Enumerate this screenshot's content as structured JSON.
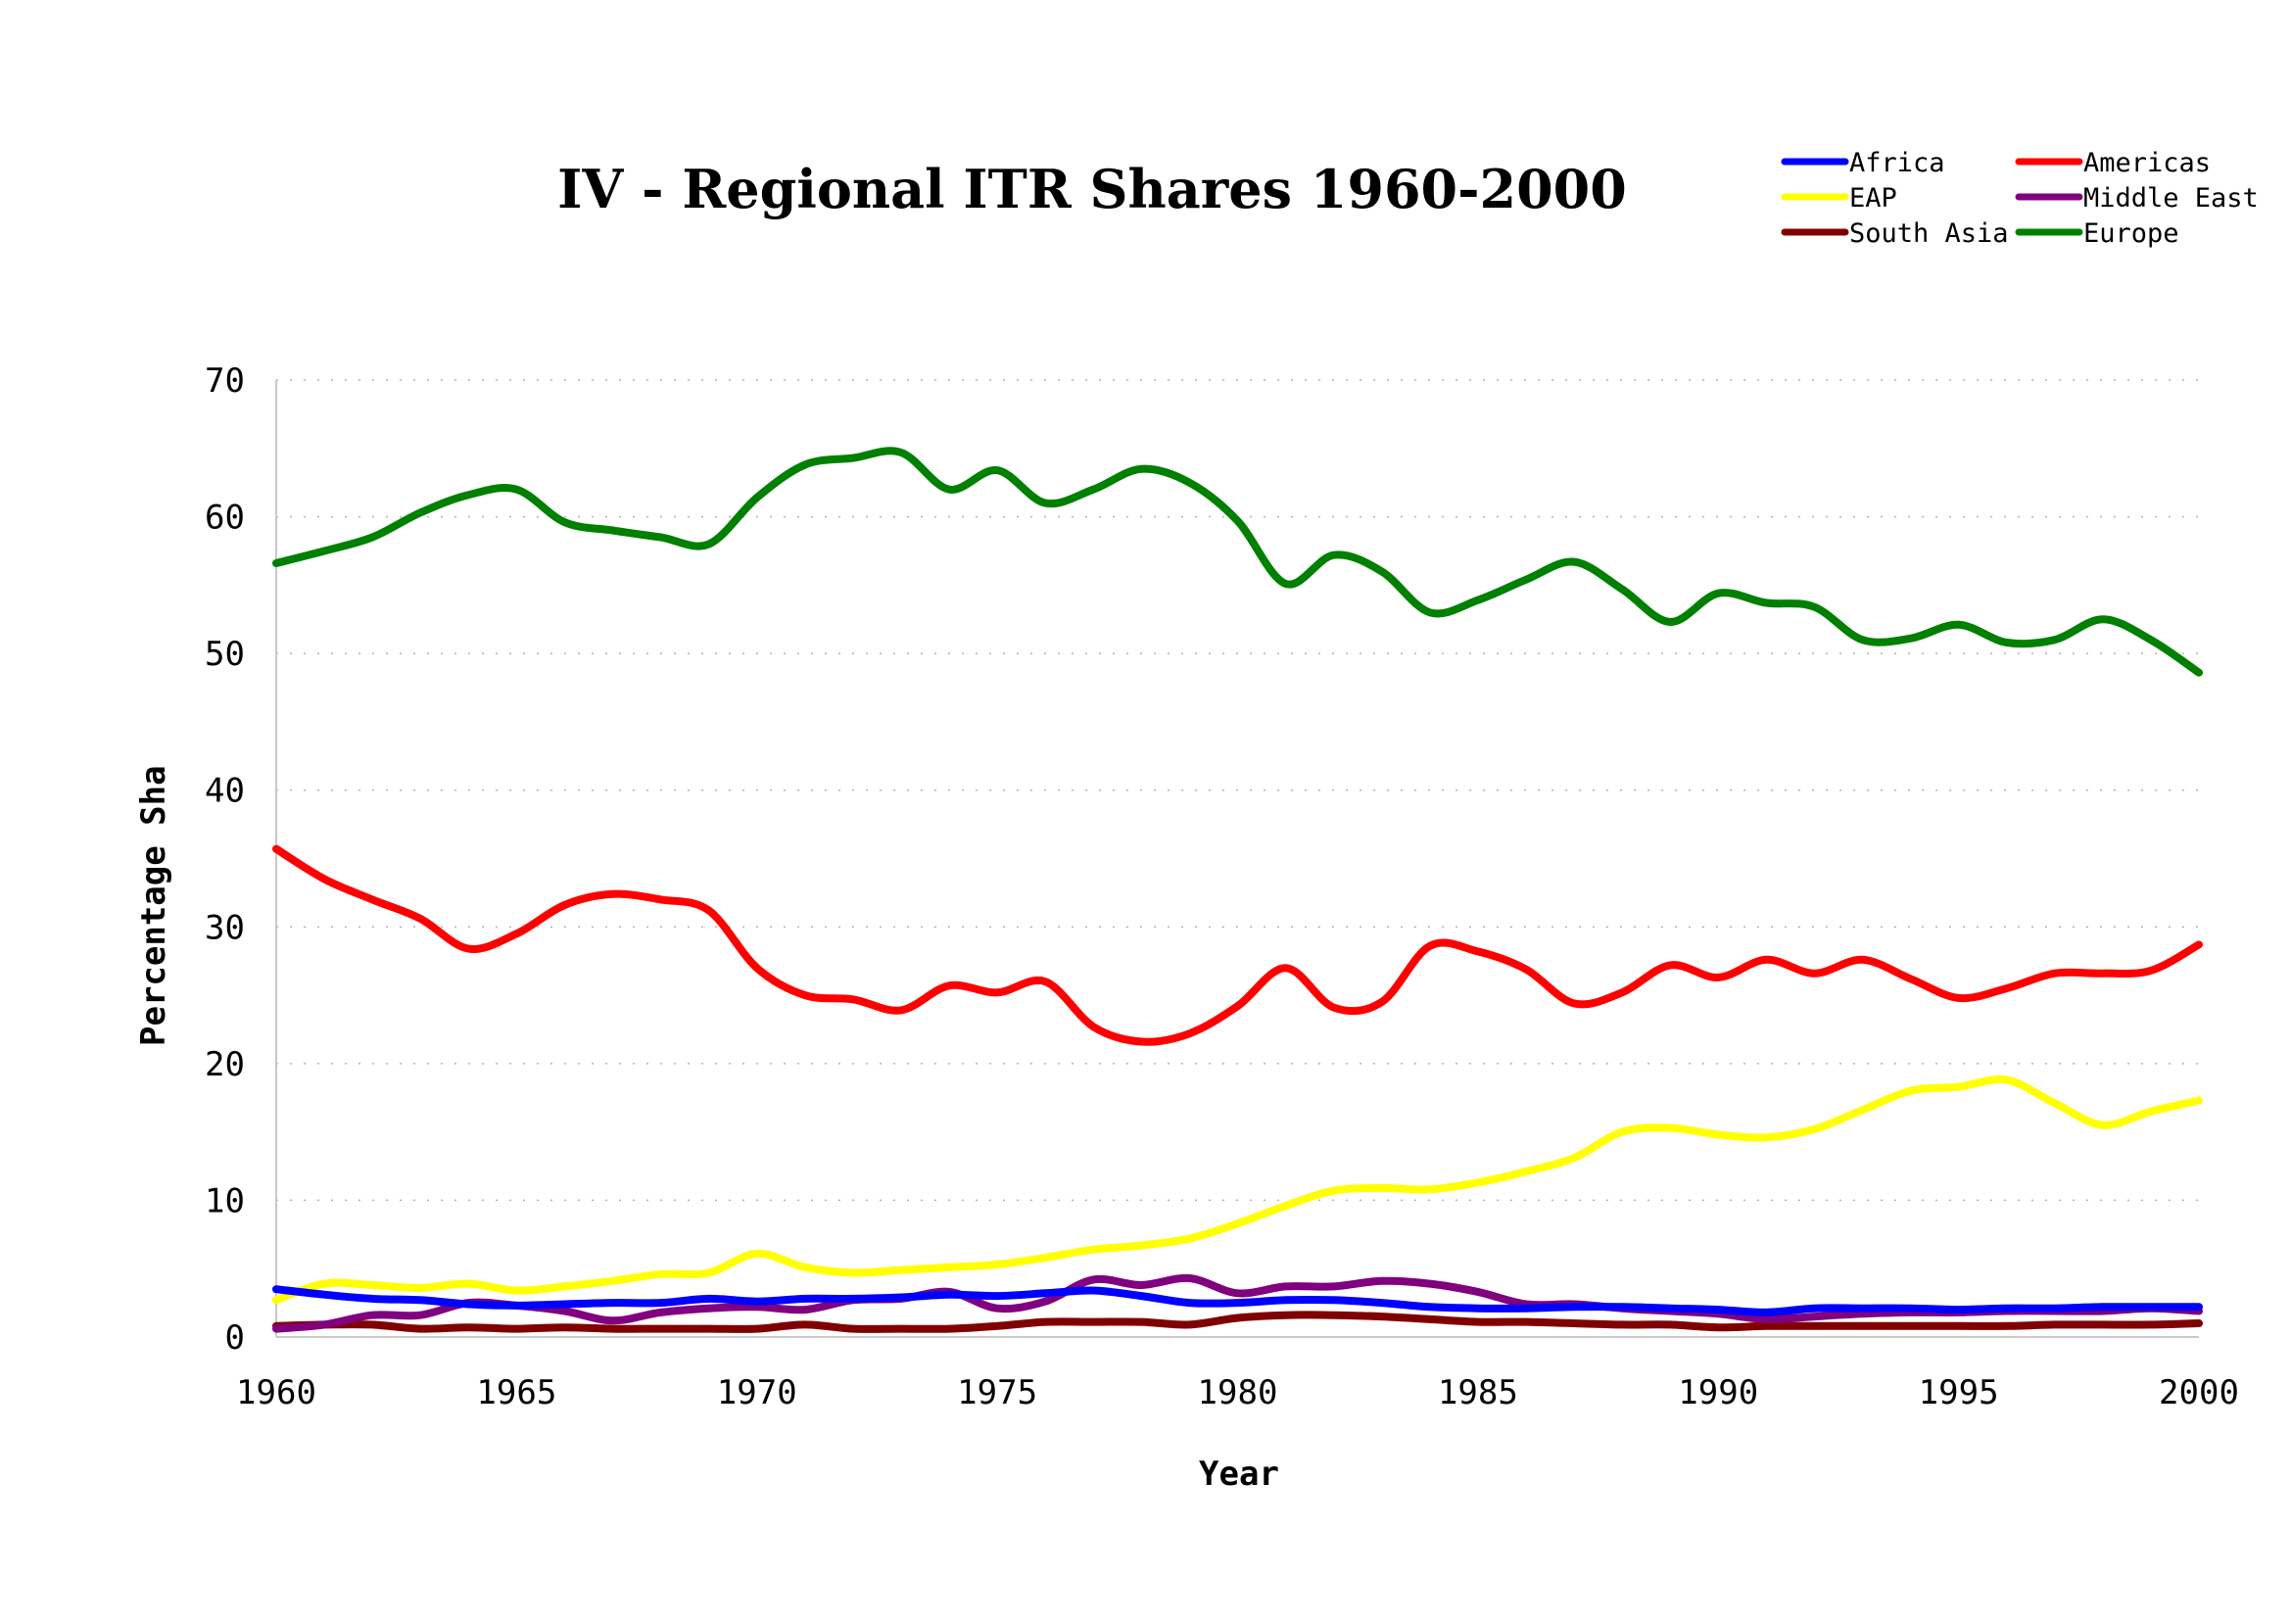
{
  "chart_data": {
    "type": "line",
    "title": "IV - Regional ITR Shares 1960-2000",
    "xlabel": "Year",
    "ylabel": "Percentage Sha",
    "xlim": [
      1960,
      2000
    ],
    "ylim": [
      0,
      70
    ],
    "xticks": [
      1960,
      1965,
      1970,
      1975,
      1980,
      1985,
      1990,
      1995,
      2000
    ],
    "yticks": [
      0,
      10,
      20,
      30,
      40,
      50,
      60,
      70
    ],
    "grid": "horizontal-dotted",
    "legend_position": "top-right",
    "x": [
      1960,
      1961,
      1962,
      1963,
      1964,
      1965,
      1966,
      1967,
      1968,
      1969,
      1970,
      1971,
      1972,
      1973,
      1974,
      1975,
      1976,
      1977,
      1978,
      1979,
      1980,
      1981,
      1982,
      1983,
      1984,
      1985,
      1986,
      1987,
      1988,
      1989,
      1990,
      1991,
      1992,
      1993,
      1994,
      1995,
      1996,
      1997,
      1998,
      1999,
      2000
    ],
    "series": [
      {
        "name": "Africa",
        "color": "#0000ff",
        "values": [
          3.5,
          3.1,
          2.8,
          2.7,
          2.4,
          2.3,
          2.4,
          2.5,
          2.5,
          2.8,
          2.6,
          2.8,
          2.8,
          2.9,
          3.1,
          3.0,
          3.2,
          3.4,
          3.0,
          2.5,
          2.5,
          2.7,
          2.7,
          2.5,
          2.2,
          2.1,
          2.1,
          2.2,
          2.2,
          2.1,
          2.0,
          1.8,
          2.1,
          2.1,
          2.1,
          2.0,
          2.1,
          2.1,
          2.2,
          2.2,
          2.2
        ]
      },
      {
        "name": "Americas",
        "color": "#ff0000",
        "values": [
          35.7,
          33.5,
          32.0,
          30.6,
          28.4,
          29.5,
          31.6,
          32.4,
          32.0,
          31.2,
          27.0,
          25.0,
          24.7,
          23.9,
          25.7,
          25.2,
          26.0,
          22.7,
          21.6,
          22.2,
          24.2,
          27.0,
          24.1,
          24.5,
          28.6,
          28.2,
          26.9,
          24.4,
          25.2,
          27.2,
          26.3,
          27.6,
          26.6,
          27.6,
          26.2,
          24.8,
          25.5,
          26.6,
          26.6,
          26.8,
          28.7
        ]
      },
      {
        "name": "EAP",
        "color": "#ffff00",
        "values": [
          2.7,
          3.9,
          3.8,
          3.6,
          3.9,
          3.4,
          3.7,
          4.1,
          4.6,
          4.7,
          6.1,
          5.1,
          4.7,
          4.9,
          5.1,
          5.3,
          5.8,
          6.4,
          6.7,
          7.2,
          8.3,
          9.6,
          10.7,
          10.9,
          10.8,
          11.3,
          12.1,
          13.1,
          15.0,
          15.3,
          14.8,
          14.6,
          15.2,
          16.6,
          18.0,
          18.3,
          18.8,
          17.1,
          15.5,
          16.5,
          17.3
        ]
      },
      {
        "name": "Middle East",
        "color": "#800080",
        "values": [
          0.6,
          0.9,
          1.6,
          1.6,
          2.5,
          2.3,
          1.9,
          1.2,
          1.8,
          2.1,
          2.2,
          2.0,
          2.7,
          2.8,
          3.3,
          2.1,
          2.6,
          4.2,
          3.8,
          4.3,
          3.2,
          3.7,
          3.7,
          4.1,
          3.9,
          3.3,
          2.4,
          2.4,
          2.1,
          1.9,
          1.7,
          1.3,
          1.5,
          1.7,
          1.8,
          1.8,
          1.9,
          1.9,
          1.9,
          2.1,
          1.9
        ]
      },
      {
        "name": "South Asia",
        "color": "#800000",
        "values": [
          0.8,
          0.9,
          0.9,
          0.6,
          0.7,
          0.6,
          0.7,
          0.6,
          0.6,
          0.6,
          0.6,
          0.9,
          0.6,
          0.6,
          0.6,
          0.8,
          1.1,
          1.1,
          1.1,
          0.9,
          1.4,
          1.6,
          1.6,
          1.5,
          1.3,
          1.1,
          1.1,
          1.0,
          0.9,
          0.9,
          0.7,
          0.8,
          0.8,
          0.8,
          0.8,
          0.8,
          0.8,
          0.9,
          0.9,
          0.9,
          1.0
        ]
      },
      {
        "name": "Europe",
        "color": "#008000",
        "values": [
          56.6,
          57.5,
          58.5,
          60.3,
          61.6,
          62.0,
          59.6,
          59.0,
          58.5,
          58.0,
          61.4,
          63.8,
          64.3,
          64.7,
          62.0,
          63.4,
          61.0,
          62.0,
          63.5,
          62.5,
          59.7,
          55.1,
          57.2,
          56.0,
          53.0,
          53.9,
          55.4,
          56.7,
          54.7,
          52.3,
          54.4,
          53.7,
          53.4,
          51.0,
          51.1,
          52.1,
          50.8,
          51.0,
          52.5,
          51.0,
          48.6
        ]
      }
    ]
  }
}
